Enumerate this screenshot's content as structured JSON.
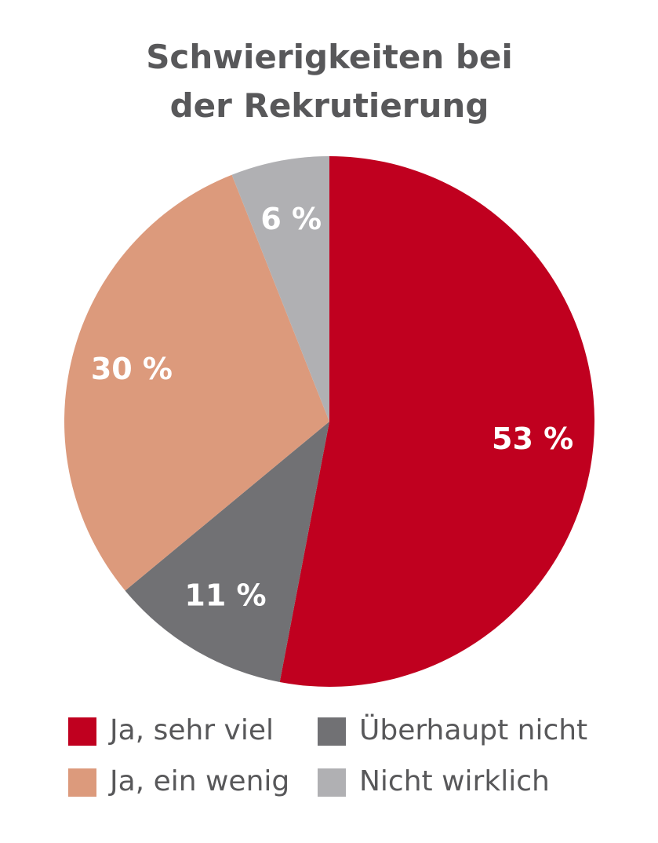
{
  "chart_data": {
    "type": "pie",
    "title": "Schwierigkeiten bei der Rekrutierung",
    "categories": [
      "Ja, sehr viel",
      "Überhaupt nicht",
      "Ja, ein wenig",
      "Nicht wirklich"
    ],
    "values": [
      53,
      11,
      30,
      6
    ],
    "value_labels": [
      "53 %",
      "11 %",
      "30 %",
      "6 %"
    ],
    "colors": [
      "#c0001f",
      "#717174",
      "#dc9a7c",
      "#b0b0b3"
    ]
  }
}
